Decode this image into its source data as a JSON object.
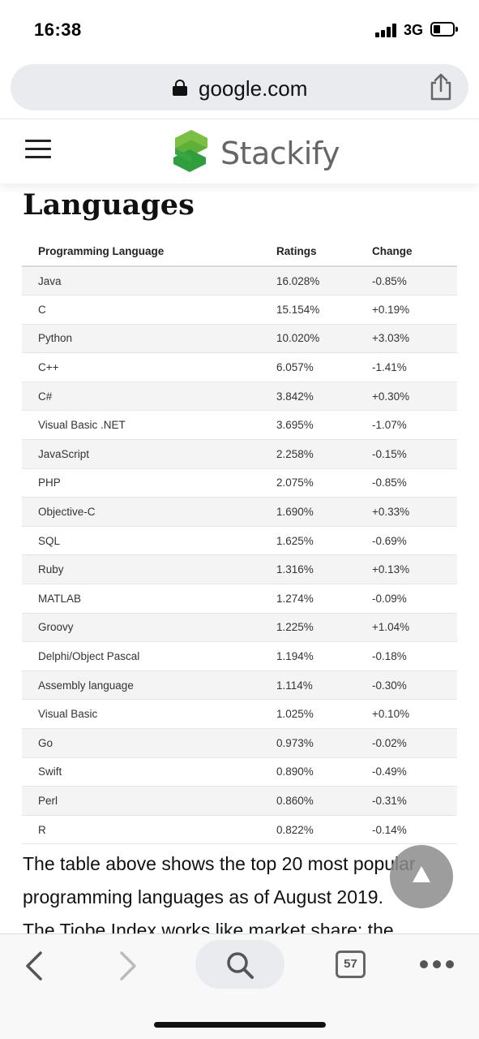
{
  "status_bar": {
    "time": "16:38",
    "network": "3G",
    "icons": [
      "signal-icon",
      "battery-icon"
    ]
  },
  "browser": {
    "url": "google.com",
    "icons": [
      "lock-icon",
      "share-icon"
    ]
  },
  "site": {
    "logo_text": "Stackify",
    "icons": [
      "menu-icon",
      "stackify-logo-icon"
    ],
    "brand_colors": {
      "logo_green_light": "#7bc043",
      "logo_green_dark": "#2e9e3e"
    }
  },
  "article": {
    "heading": "Languages",
    "table": {
      "headers": [
        "Programming Language",
        "Ratings",
        "Change"
      ],
      "rows": [
        [
          "Java",
          "16.028%",
          "-0.85%"
        ],
        [
          "C",
          "15.154%",
          "+0.19%"
        ],
        [
          "Python",
          "10.020%",
          "+3.03%"
        ],
        [
          "C++",
          "6.057%",
          "-1.41%"
        ],
        [
          "C#",
          "3.842%",
          "+0.30%"
        ],
        [
          "Visual Basic .NET",
          "3.695%",
          "-1.07%"
        ],
        [
          "JavaScript",
          "2.258%",
          "-0.15%"
        ],
        [
          "PHP",
          "2.075%",
          "-0.85%"
        ],
        [
          "Objective-C",
          "1.690%",
          "+0.33%"
        ],
        [
          "SQL",
          "1.625%",
          "-0.69%"
        ],
        [
          "Ruby",
          "1.316%",
          "+0.13%"
        ],
        [
          "MATLAB",
          "1.274%",
          "-0.09%"
        ],
        [
          "Groovy",
          "1.225%",
          "+1.04%"
        ],
        [
          "Delphi/Object Pascal",
          "1.194%",
          "-0.18%"
        ],
        [
          "Assembly language",
          "1.114%",
          "-0.30%"
        ],
        [
          "Visual Basic",
          "1.025%",
          "+0.10%"
        ],
        [
          "Go",
          "0.973%",
          "-0.02%"
        ],
        [
          "Swift",
          "0.890%",
          "-0.49%"
        ],
        [
          "Perl",
          "0.860%",
          "-0.31%"
        ],
        [
          "R",
          "0.822%",
          "-0.14%"
        ]
      ]
    },
    "paragraph_lines": [
      "The table above shows the top 20 most popular",
      "programming languages as of August 2019.",
      "The Tiobe Index works like market share: the"
    ]
  },
  "floating": {
    "scroll_top_icon": "arrow-up-icon"
  },
  "toolbar": {
    "tab_count": "57",
    "icons": [
      "back-icon",
      "forward-icon",
      "search-icon",
      "tabs-icon",
      "more-icon"
    ]
  }
}
